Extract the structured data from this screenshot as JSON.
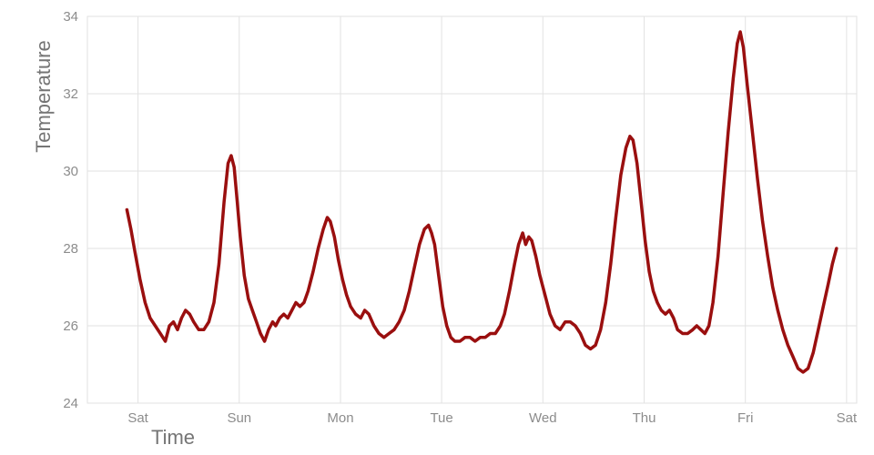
{
  "chart_data": {
    "type": "line",
    "title": "",
    "xlabel": "Time",
    "ylabel": "Temperature",
    "x_tick_labels": [
      "Sat",
      "Sun",
      "Mon",
      "Tue",
      "Wed",
      "Thu",
      "Fri",
      "Sat"
    ],
    "x_tick_positions": [
      0,
      1,
      2,
      3,
      4,
      5,
      6,
      7
    ],
    "xlim": [
      -0.5,
      7.1
    ],
    "ylim": [
      24,
      34
    ],
    "y_ticks": [
      24,
      26,
      28,
      30,
      32,
      34
    ],
    "grid": true,
    "legend": "none",
    "line_color": "#9a0f0f",
    "grid_color": "#e2e2e2",
    "tick_label_color": "#8c8c8c",
    "axis_title_color": "#757575",
    "series": [
      {
        "name": "temperature",
        "points": [
          [
            -0.11,
            29.0
          ],
          [
            -0.07,
            28.5
          ],
          [
            -0.03,
            27.9
          ],
          [
            0.02,
            27.2
          ],
          [
            0.07,
            26.6
          ],
          [
            0.12,
            26.2
          ],
          [
            0.17,
            26.0
          ],
          [
            0.22,
            25.8
          ],
          [
            0.27,
            25.6
          ],
          [
            0.31,
            26.0
          ],
          [
            0.35,
            26.1
          ],
          [
            0.39,
            25.9
          ],
          [
            0.43,
            26.2
          ],
          [
            0.47,
            26.4
          ],
          [
            0.51,
            26.3
          ],
          [
            0.55,
            26.1
          ],
          [
            0.6,
            25.9
          ],
          [
            0.65,
            25.9
          ],
          [
            0.7,
            26.1
          ],
          [
            0.75,
            26.6
          ],
          [
            0.8,
            27.6
          ],
          [
            0.85,
            29.2
          ],
          [
            0.89,
            30.2
          ],
          [
            0.92,
            30.4
          ],
          [
            0.95,
            30.1
          ],
          [
            0.98,
            29.2
          ],
          [
            1.01,
            28.3
          ],
          [
            1.05,
            27.3
          ],
          [
            1.09,
            26.7
          ],
          [
            1.13,
            26.4
          ],
          [
            1.17,
            26.1
          ],
          [
            1.21,
            25.8
          ],
          [
            1.25,
            25.6
          ],
          [
            1.29,
            25.9
          ],
          [
            1.33,
            26.1
          ],
          [
            1.36,
            26.0
          ],
          [
            1.4,
            26.2
          ],
          [
            1.44,
            26.3
          ],
          [
            1.48,
            26.2
          ],
          [
            1.52,
            26.4
          ],
          [
            1.56,
            26.6
          ],
          [
            1.6,
            26.5
          ],
          [
            1.64,
            26.6
          ],
          [
            1.68,
            26.9
          ],
          [
            1.73,
            27.4
          ],
          [
            1.78,
            28.0
          ],
          [
            1.83,
            28.5
          ],
          [
            1.87,
            28.8
          ],
          [
            1.9,
            28.7
          ],
          [
            1.94,
            28.3
          ],
          [
            1.98,
            27.7
          ],
          [
            2.02,
            27.2
          ],
          [
            2.06,
            26.8
          ],
          [
            2.1,
            26.5
          ],
          [
            2.15,
            26.3
          ],
          [
            2.2,
            26.2
          ],
          [
            2.24,
            26.4
          ],
          [
            2.28,
            26.3
          ],
          [
            2.33,
            26.0
          ],
          [
            2.38,
            25.8
          ],
          [
            2.43,
            25.7
          ],
          [
            2.48,
            25.8
          ],
          [
            2.53,
            25.9
          ],
          [
            2.58,
            26.1
          ],
          [
            2.63,
            26.4
          ],
          [
            2.68,
            26.9
          ],
          [
            2.73,
            27.5
          ],
          [
            2.78,
            28.1
          ],
          [
            2.83,
            28.5
          ],
          [
            2.87,
            28.6
          ],
          [
            2.9,
            28.4
          ],
          [
            2.93,
            28.1
          ],
          [
            2.97,
            27.3
          ],
          [
            3.01,
            26.5
          ],
          [
            3.05,
            26.0
          ],
          [
            3.09,
            25.7
          ],
          [
            3.13,
            25.6
          ],
          [
            3.18,
            25.6
          ],
          [
            3.23,
            25.7
          ],
          [
            3.28,
            25.7
          ],
          [
            3.33,
            25.6
          ],
          [
            3.38,
            25.7
          ],
          [
            3.43,
            25.7
          ],
          [
            3.48,
            25.8
          ],
          [
            3.53,
            25.8
          ],
          [
            3.58,
            26.0
          ],
          [
            3.62,
            26.3
          ],
          [
            3.67,
            26.9
          ],
          [
            3.72,
            27.6
          ],
          [
            3.76,
            28.1
          ],
          [
            3.8,
            28.4
          ],
          [
            3.83,
            28.1
          ],
          [
            3.86,
            28.3
          ],
          [
            3.89,
            28.2
          ],
          [
            3.93,
            27.8
          ],
          [
            3.97,
            27.3
          ],
          [
            4.02,
            26.8
          ],
          [
            4.07,
            26.3
          ],
          [
            4.12,
            26.0
          ],
          [
            4.17,
            25.9
          ],
          [
            4.22,
            26.1
          ],
          [
            4.27,
            26.1
          ],
          [
            4.32,
            26.0
          ],
          [
            4.37,
            25.8
          ],
          [
            4.42,
            25.5
          ],
          [
            4.47,
            25.4
          ],
          [
            4.52,
            25.5
          ],
          [
            4.57,
            25.9
          ],
          [
            4.62,
            26.6
          ],
          [
            4.67,
            27.6
          ],
          [
            4.72,
            28.8
          ],
          [
            4.77,
            29.9
          ],
          [
            4.82,
            30.6
          ],
          [
            4.86,
            30.9
          ],
          [
            4.89,
            30.8
          ],
          [
            4.93,
            30.2
          ],
          [
            4.97,
            29.2
          ],
          [
            5.01,
            28.2
          ],
          [
            5.05,
            27.4
          ],
          [
            5.09,
            26.9
          ],
          [
            5.13,
            26.6
          ],
          [
            5.17,
            26.4
          ],
          [
            5.21,
            26.3
          ],
          [
            5.25,
            26.4
          ],
          [
            5.29,
            26.2
          ],
          [
            5.33,
            25.9
          ],
          [
            5.38,
            25.8
          ],
          [
            5.43,
            25.8
          ],
          [
            5.48,
            25.9
          ],
          [
            5.52,
            26.0
          ],
          [
            5.56,
            25.9
          ],
          [
            5.6,
            25.8
          ],
          [
            5.64,
            26.0
          ],
          [
            5.68,
            26.6
          ],
          [
            5.73,
            27.8
          ],
          [
            5.78,
            29.4
          ],
          [
            5.83,
            31.0
          ],
          [
            5.88,
            32.4
          ],
          [
            5.92,
            33.3
          ],
          [
            5.95,
            33.6
          ],
          [
            5.98,
            33.2
          ],
          [
            6.02,
            32.2
          ],
          [
            6.07,
            31.0
          ],
          [
            6.12,
            29.8
          ],
          [
            6.17,
            28.7
          ],
          [
            6.22,
            27.8
          ],
          [
            6.27,
            27.0
          ],
          [
            6.32,
            26.4
          ],
          [
            6.37,
            25.9
          ],
          [
            6.42,
            25.5
          ],
          [
            6.47,
            25.2
          ],
          [
            6.52,
            24.9
          ],
          [
            6.57,
            24.8
          ],
          [
            6.62,
            24.9
          ],
          [
            6.67,
            25.3
          ],
          [
            6.72,
            25.9
          ],
          [
            6.77,
            26.5
          ],
          [
            6.82,
            27.1
          ],
          [
            6.86,
            27.6
          ],
          [
            6.9,
            28.0
          ]
        ]
      }
    ]
  }
}
